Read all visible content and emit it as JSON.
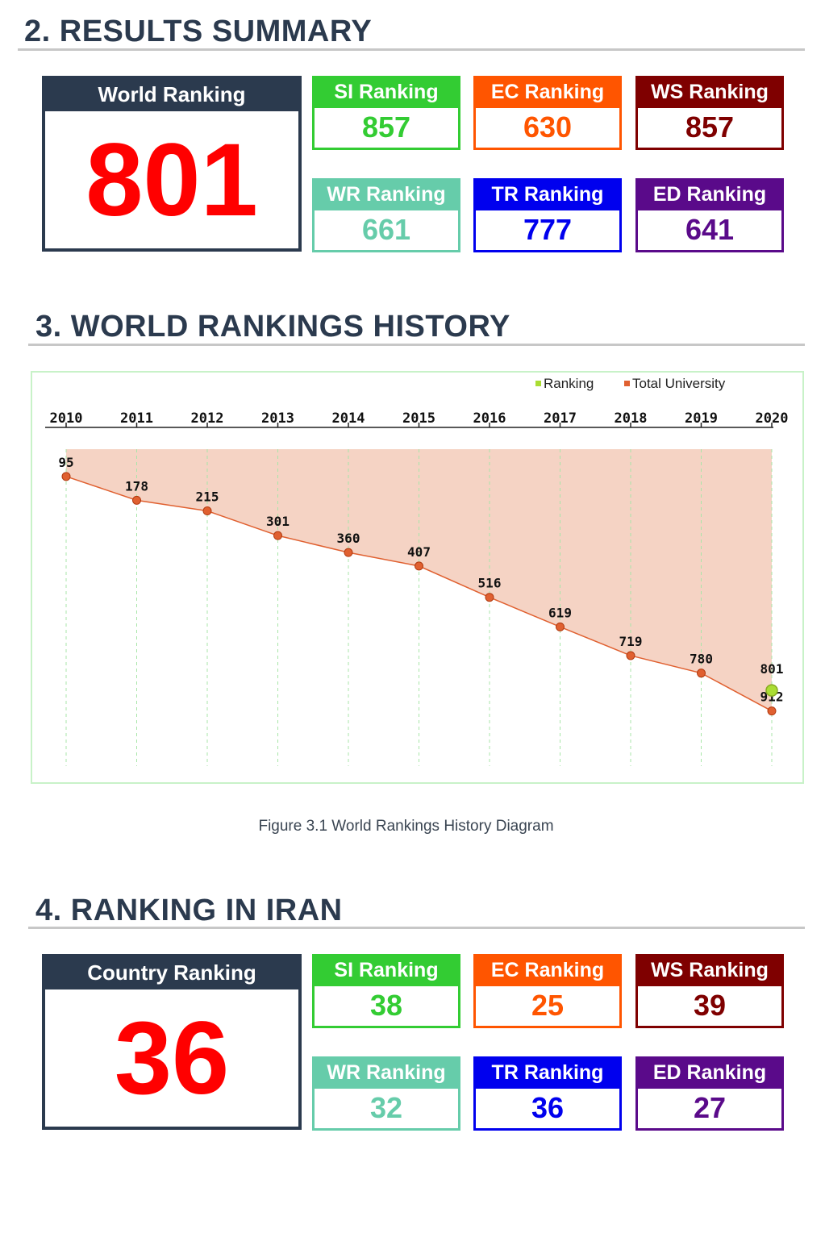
{
  "results_summary": {
    "title": "2. RESULTS SUMMARY",
    "main": {
      "label": "World Ranking",
      "value": "801"
    },
    "cards": [
      {
        "label": "SI Ranking",
        "value": "857",
        "color": "#33cc33"
      },
      {
        "label": "EC Ranking",
        "value": "630",
        "color": "#ff5500"
      },
      {
        "label": "WS Ranking",
        "value": "857",
        "color": "#7f0000"
      },
      {
        "label": "WR Ranking",
        "value": "661",
        "color": "#66ccaa"
      },
      {
        "label": "TR Ranking",
        "value": "777",
        "color": "#0000ee"
      },
      {
        "label": "ED Ranking",
        "value": "641",
        "color": "#5a0a8a"
      }
    ]
  },
  "history": {
    "title": "3. WORLD RANKINGS HISTORY",
    "caption": "Figure 3.1 World Rankings History Diagram"
  },
  "chart_data": {
    "type": "area",
    "x": [
      "2010",
      "2011",
      "2012",
      "2013",
      "2014",
      "2015",
      "2016",
      "2017",
      "2018",
      "2019",
      "2020"
    ],
    "series": [
      {
        "name": "Total University",
        "values": [
          95,
          178,
          215,
          301,
          360,
          407,
          516,
          619,
          719,
          780,
          912
        ],
        "color": "#e06030",
        "fill": "#f5d3c4"
      },
      {
        "name": "Ranking",
        "values": [
          null,
          null,
          null,
          null,
          null,
          null,
          null,
          null,
          null,
          null,
          801
        ],
        "color": "#aadd33"
      }
    ],
    "y_inverted": true,
    "x_axis_position": "top",
    "legend": "top-right",
    "grid": "vertical dashed"
  },
  "iran": {
    "title": "4. RANKING IN IRAN",
    "main": {
      "label": "Country Ranking",
      "value": "36"
    },
    "cards": [
      {
        "label": "SI Ranking",
        "value": "38",
        "color": "#33cc33"
      },
      {
        "label": "EC Ranking",
        "value": "25",
        "color": "#ff5500"
      },
      {
        "label": "WS Ranking",
        "value": "39",
        "color": "#7f0000"
      },
      {
        "label": "WR Ranking",
        "value": "32",
        "color": "#66ccaa"
      },
      {
        "label": "TR Ranking",
        "value": "36",
        "color": "#0000ee"
      },
      {
        "label": "ED Ranking",
        "value": "27",
        "color": "#5a0a8a"
      }
    ]
  }
}
